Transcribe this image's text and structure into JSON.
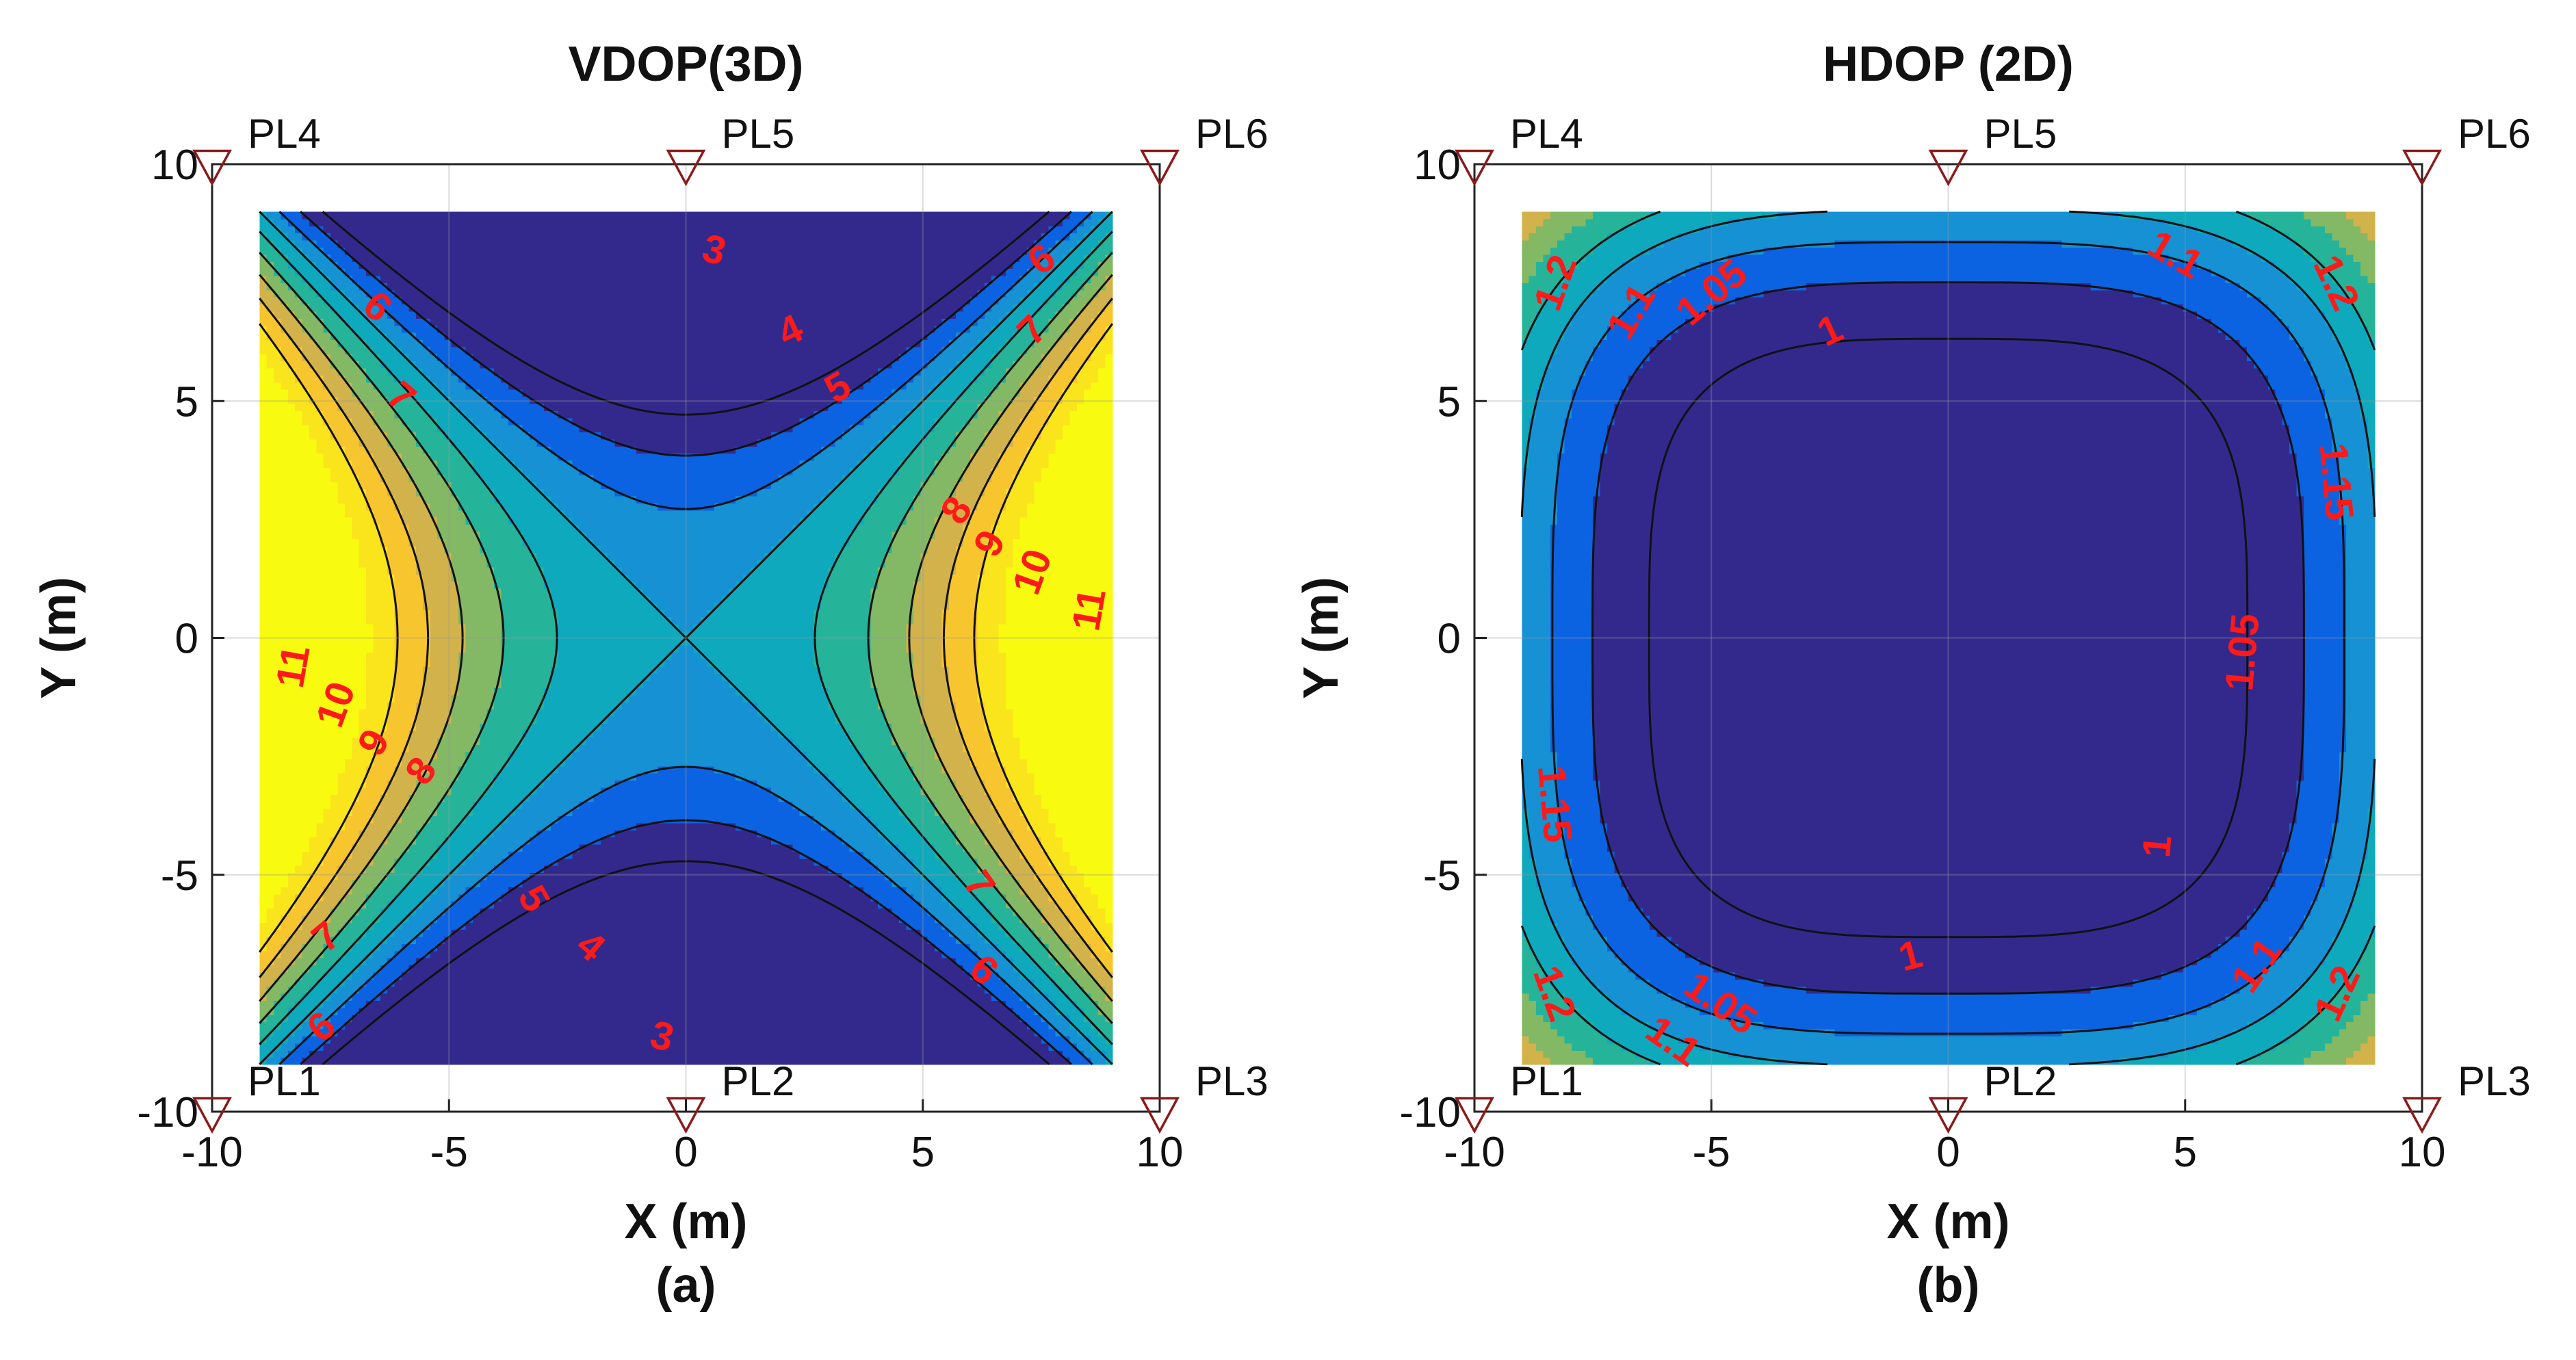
{
  "chart_data": [
    {
      "type": "contour",
      "title": "VDOP(3D)",
      "xlabel": "X (m)",
      "ylabel": "Y (m)",
      "sublabel": "(a)",
      "xlim": [
        -10,
        10
      ],
      "ylim": [
        -10,
        10
      ],
      "xticks": [
        -10,
        -5,
        0,
        5,
        10
      ],
      "yticks": [
        -10,
        -5,
        0,
        5,
        10
      ],
      "grid": true,
      "data_extent": {
        "x": [
          -9,
          9
        ],
        "y": [
          -9,
          9
        ]
      },
      "contour_levels": [
        3,
        4,
        5,
        6,
        7,
        8,
        9,
        10,
        11
      ],
      "level_colors": {
        "2": "#33298d",
        "3": "#33298d",
        "4": "#0b63e1",
        "5": "#1591d4",
        "6": "#0fa9bd",
        "7": "#25b49a",
        "8": "#83b865",
        "9": "#d1b24b",
        "10": "#f7c52e",
        "11": "#fae51c",
        "12": "#f8fa10"
      },
      "contour_labels": [
        {
          "text": "3",
          "x": 0.6,
          "y": 8.2,
          "rot": 15
        },
        {
          "text": "4",
          "x": 2.2,
          "y": 6.5,
          "rot": -25
        },
        {
          "text": "5",
          "x": 3.2,
          "y": 5.3,
          "rot": -30
        },
        {
          "text": "6",
          "x": -6.5,
          "y": 7.0,
          "rot": 40
        },
        {
          "text": "7",
          "x": -6.0,
          "y": 5.1,
          "rot": 40
        },
        {
          "text": "6",
          "x": 7.5,
          "y": 8.0,
          "rot": -35
        },
        {
          "text": "7",
          "x": 7.3,
          "y": 6.5,
          "rot": -45
        },
        {
          "text": "8",
          "x": 5.7,
          "y": 2.7,
          "rot": -55
        },
        {
          "text": "9",
          "x": 6.4,
          "y": 2.0,
          "rot": -60
        },
        {
          "text": "10",
          "x": 7.3,
          "y": 1.4,
          "rot": -70
        },
        {
          "text": "11",
          "x": 8.5,
          "y": 0.6,
          "rot": -80
        },
        {
          "text": "11",
          "x": -8.3,
          "y": -0.6,
          "rot": -80
        },
        {
          "text": "10",
          "x": -7.4,
          "y": -1.4,
          "rot": -70
        },
        {
          "text": "9",
          "x": -6.6,
          "y": -2.2,
          "rot": -60
        },
        {
          "text": "8",
          "x": -5.6,
          "y": -2.8,
          "rot": -55
        },
        {
          "text": "5",
          "x": -3.2,
          "y": -5.5,
          "rot": 60
        },
        {
          "text": "4",
          "x": -2.0,
          "y": -6.5,
          "rot": 40
        },
        {
          "text": "3",
          "x": -0.5,
          "y": -8.4,
          "rot": 15
        },
        {
          "text": "7",
          "x": 6.2,
          "y": -5.2,
          "rot": 55
        },
        {
          "text": "6",
          "x": 6.3,
          "y": -7.0,
          "rot": 40
        },
        {
          "text": "7",
          "x": -7.6,
          "y": -6.3,
          "rot": -40
        },
        {
          "text": "6",
          "x": -7.7,
          "y": -8.2,
          "rot": -40
        }
      ],
      "anchors": [
        {
          "name": "PL1",
          "x": -10,
          "y": -10
        },
        {
          "name": "PL2",
          "x": 0,
          "y": -10
        },
        {
          "name": "PL3",
          "x": 10,
          "y": -10
        },
        {
          "name": "PL4",
          "x": -10,
          "y": 10
        },
        {
          "name": "PL5",
          "x": 0,
          "y": 10
        },
        {
          "name": "PL6",
          "x": 10,
          "y": 10
        }
      ]
    },
    {
      "type": "contour",
      "title": "HDOP (2D)",
      "xlabel": "X (m)",
      "ylabel": "Y (m)",
      "sublabel": "(b)",
      "xlim": [
        -10,
        10
      ],
      "ylim": [
        -10,
        10
      ],
      "xticks": [
        -10,
        -5,
        0,
        5,
        10
      ],
      "yticks": [
        -10,
        -5,
        0,
        5,
        10
      ],
      "grid": true,
      "data_extent": {
        "x": [
          -9,
          9
        ],
        "y": [
          -9,
          9
        ]
      },
      "contour_levels": [
        1,
        1.05,
        1.1,
        1.15,
        1.2
      ],
      "level_colors": {
        "0.95": "#33298d",
        "1": "#33298d",
        "1.05": "#0b63e1",
        "1.1": "#1591d4",
        "1.15": "#0fa9bd",
        "1.2": "#25b49a",
        "1.25": "#83b865",
        "1.3": "#d1b24b",
        "1.35": "#f7c52e",
        "1.4": "#fae51c"
      },
      "contour_labels": [
        {
          "text": "1.2",
          "x": -8.3,
          "y": 7.5,
          "rot": -70
        },
        {
          "text": "1.1",
          "x": -6.7,
          "y": 6.9,
          "rot": -60
        },
        {
          "text": "1.05",
          "x": -5.0,
          "y": 7.3,
          "rot": -40
        },
        {
          "text": "1",
          "x": -2.5,
          "y": 6.5,
          "rot": -25
        },
        {
          "text": "1.1",
          "x": 4.8,
          "y": 8.1,
          "rot": 30
        },
        {
          "text": "1.2",
          "x": 8.2,
          "y": 7.5,
          "rot": 65
        },
        {
          "text": "1.15",
          "x": 8.2,
          "y": 3.3,
          "rot": 85
        },
        {
          "text": "1.05",
          "x": 6.2,
          "y": -0.3,
          "rot": -85
        },
        {
          "text": "1.15",
          "x": -8.3,
          "y": -3.5,
          "rot": 85
        },
        {
          "text": "1",
          "x": 4.4,
          "y": -4.4,
          "rot": -85
        },
        {
          "text": "1",
          "x": -0.8,
          "y": -6.7,
          "rot": -15
        },
        {
          "text": "1.05",
          "x": -4.8,
          "y": -7.7,
          "rot": 35
        },
        {
          "text": "1.1",
          "x": -5.8,
          "y": -8.5,
          "rot": 35
        },
        {
          "text": "1.2",
          "x": -8.3,
          "y": -7.5,
          "rot": 70
        },
        {
          "text": "1.1",
          "x": 6.5,
          "y": -6.9,
          "rot": -55
        },
        {
          "text": "1.2",
          "x": 8.2,
          "y": -7.5,
          "rot": -65
        }
      ],
      "anchors": [
        {
          "name": "PL1",
          "x": -10,
          "y": -10
        },
        {
          "name": "PL2",
          "x": 0,
          "y": -10
        },
        {
          "name": "PL3",
          "x": 10,
          "y": -10
        },
        {
          "name": "PL4",
          "x": -10,
          "y": 10
        },
        {
          "name": "PL5",
          "x": 0,
          "y": 10
        },
        {
          "name": "PL6",
          "x": 10,
          "y": 10
        }
      ]
    }
  ]
}
